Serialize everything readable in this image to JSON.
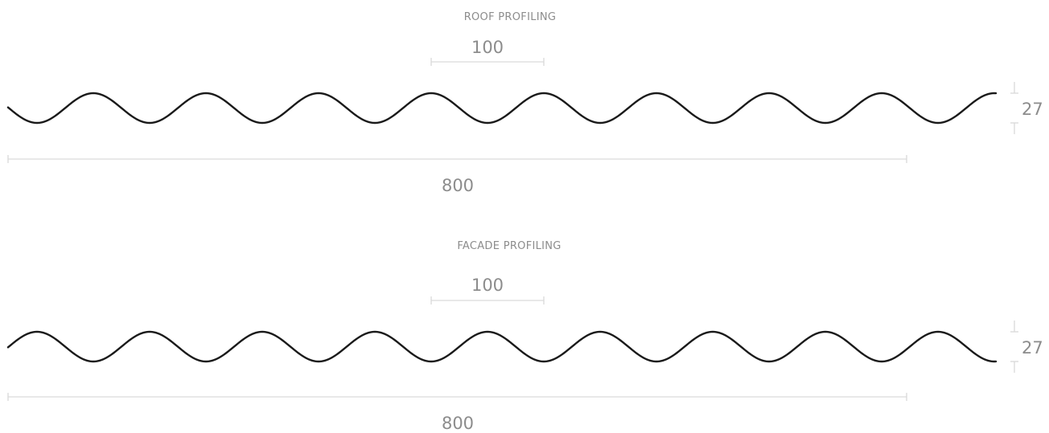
{
  "diagram": {
    "colors": {
      "profile_line": "#1a1a1a",
      "dimension_line": "#d9d9d9",
      "label_text": "#8c8c8c"
    },
    "profiles": [
      {
        "title": "ROOF PROFILING",
        "pitch_label": "100",
        "width_label": "800",
        "depth_label": "27"
      },
      {
        "title": "FACADE PROFILING",
        "pitch_label": "100",
        "width_label": "800",
        "depth_label": "27"
      }
    ]
  }
}
